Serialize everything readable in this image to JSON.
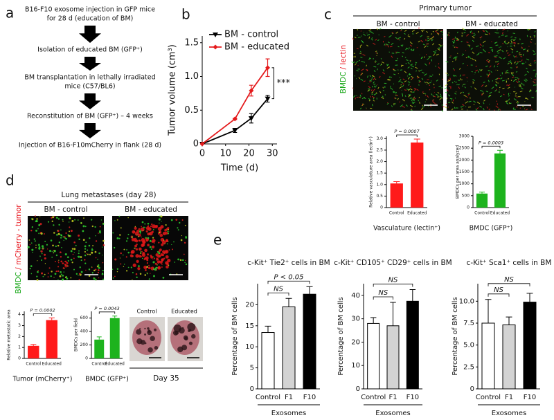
{
  "panel_labels": [
    "a",
    "b",
    "c",
    "d",
    "e"
  ],
  "flowchart": {
    "steps": [
      [
        "B16-F10 exosome injection in GFP mice",
        "for 28 d (education of BM)"
      ],
      [
        "Isolation of educated BM (GFP⁺)"
      ],
      [
        "BM transplantation in lethally irradiated",
        "mice (C57/BL6)"
      ],
      [
        "Reconstitution of BM (GFP⁺) – 4 weeks"
      ],
      [
        "Injection of B16-F10mCherry in flank (28 d)"
      ]
    ]
  },
  "panel_c": {
    "header": "Primary tumor",
    "image_titles": [
      "BM - control",
      "BM - educated"
    ],
    "stain_label": [
      "BMDC",
      "/ lectin"
    ],
    "stain_colors": [
      "#1aa81a",
      "#e8141c"
    ]
  },
  "panel_d": {
    "header": "Lung metastases (day 28)",
    "image_titles": [
      "BM - control",
      "BM - educated"
    ],
    "stain_label": [
      "BMDC",
      "/ mCherry - tumor"
    ],
    "stain_colors": [
      "#1aa81a",
      "#e8141c"
    ],
    "photo_titles": [
      "Control",
      "Educated"
    ],
    "photo_caption": "Day 35"
  },
  "chart_data": [
    {
      "type": "line",
      "ylabel": "Tumor volume (cm³)",
      "xlabel": "Time (d)",
      "x": [
        0,
        14,
        21,
        28
      ],
      "xlim": [
        0,
        32
      ],
      "xticks": [
        0,
        10,
        20,
        30
      ],
      "ylim": [
        0,
        1.6
      ],
      "yticks": [
        0,
        0.5,
        {
          "value": 1,
          "label": "1.0"
        },
        1.5
      ],
      "series": [
        {
          "name": "BM - control",
          "color": "#000000",
          "marker": "triangle-down",
          "values": [
            0,
            0.2,
            0.38,
            0.67
          ],
          "errors": [
            0,
            0.03,
            0.07,
            0.05
          ]
        },
        {
          "name": "BM - educated",
          "color": "#e41a1c",
          "marker": "diamond",
          "values": [
            0,
            0.37,
            0.79,
            1.13
          ],
          "errors": [
            0,
            0.01,
            0.08,
            0.13
          ]
        }
      ],
      "annotations": [
        "***"
      ]
    },
    {
      "type": "bar",
      "ylabel": "Relative vasculature area (lectin⁺)",
      "caption": "Vasculature (lectin⁺)",
      "categories": [
        "Control",
        "Educated"
      ],
      "values": [
        1.05,
        2.83
      ],
      "errors": [
        0.08,
        0.15
      ],
      "color": "#ff1a1a",
      "ylim": [
        0,
        3.1
      ],
      "yticks": [
        0,
        0.5,
        {
          "value": 1,
          "label": "1.0"
        },
        1.5,
        {
          "value": 2,
          "label": "2.0"
        },
        2.5,
        {
          "value": 3,
          "label": "3.0"
        }
      ],
      "annotations": [
        "P = 0.0007"
      ]
    },
    {
      "type": "bar",
      "ylabel": "BMDCs per area analyzed",
      "caption": "BMDC (GFP⁺)",
      "categories": [
        "Control",
        "Educated"
      ],
      "values": [
        590,
        2280
      ],
      "errors": [
        60,
        130
      ],
      "color": "#1db31d",
      "ylim": [
        0,
        3000
      ],
      "yticks": [
        0,
        500,
        1000,
        1500,
        2000,
        2500,
        3000
      ],
      "annotations": [
        "P = 0.0003"
      ]
    },
    {
      "type": "bar",
      "ylabel": "Relative metastatic area",
      "caption": "Tumor (mCherry⁺)",
      "categories": [
        "Control",
        "Educated"
      ],
      "values": [
        1.15,
        3.5
      ],
      "errors": [
        0.12,
        0.2
      ],
      "color": "#ff1a1a",
      "ylim": [
        0,
        4.3
      ],
      "yticks": [
        0,
        1,
        2,
        3,
        4
      ],
      "annotations": [
        "P = 0.0002"
      ]
    },
    {
      "type": "bar",
      "ylabel": "BMDCs per field",
      "caption": "BMDC (GFP⁺)",
      "categories": [
        "Control",
        "Educated"
      ],
      "values": [
        280,
        600
      ],
      "errors": [
        40,
        30
      ],
      "color": "#1db31d",
      "ylim": [
        0,
        700
      ],
      "yticks": [
        0,
        200,
        400,
        600
      ],
      "annotations": [
        "P = 0.0043"
      ]
    },
    {
      "type": "bar",
      "title": "c-Kit⁺ Tie2⁺ cells in BM",
      "ylabel": "Percentage of BM cells",
      "xgroup": "Exosomes",
      "categories": [
        "Control",
        "F1",
        "F10"
      ],
      "values": [
        13.4,
        19.5,
        22.5
      ],
      "errors": [
        1.5,
        2,
        1.8
      ],
      "colors": [
        "#ffffff",
        "#d3d3d3",
        "#000000"
      ],
      "ylim": [
        0,
        25
      ],
      "yticks": [
        0,
        5,
        10,
        15,
        20
      ],
      "annotations": [
        "NS",
        "P < 0.05"
      ]
    },
    {
      "type": "bar",
      "title": "c-Kit⁺ CD105⁺ CD29⁺ cells in BM",
      "ylabel": "Percentage of BM cells",
      "xgroup": "Exosomes",
      "categories": [
        "Control",
        "F1",
        "F10"
      ],
      "values": [
        28,
        27,
        37.5
      ],
      "errors": [
        2.5,
        10,
        5
      ],
      "colors": [
        "#ffffff",
        "#d3d3d3",
        "#000000"
      ],
      "ylim": [
        0,
        45
      ],
      "yticks": [
        0,
        10,
        20,
        30,
        40
      ],
      "annotations": [
        "NS",
        "NS"
      ]
    },
    {
      "type": "bar",
      "title": "c-Kit⁺ Sca1⁺ cells in BM",
      "ylabel": "Percentage of BM cells",
      "xgroup": "Exosomes",
      "categories": [
        "Control",
        "F1",
        "F10"
      ],
      "values": [
        7.5,
        7.3,
        9.9
      ],
      "errors": [
        2.7,
        0.9,
        1.0
      ],
      "colors": [
        "#ffffff",
        "#d3d3d3",
        "#000000"
      ],
      "ylim": [
        0,
        12
      ],
      "yticks": [
        0,
        2.5,
        {
          "value": 5,
          "label": "5.0"
        },
        7.5,
        {
          "value": 10,
          "label": "10.0"
        }
      ],
      "annotations": [
        "NS",
        "NS"
      ]
    }
  ]
}
